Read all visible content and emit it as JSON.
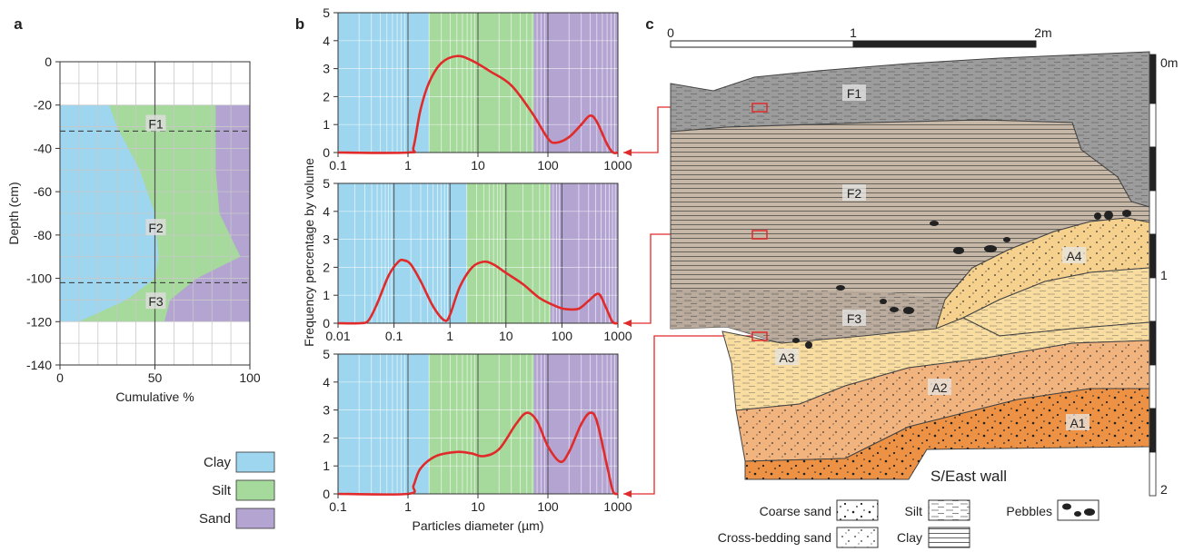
{
  "panels": {
    "a": "a",
    "b": "b",
    "c": "c"
  },
  "colors": {
    "clay": "#9fd6ef",
    "silt": "#a6d99c",
    "sand": "#b3a4d1",
    "curve": "#e12a2a",
    "f_layer": "#9c9c9c",
    "f2_fill": "#c6b7a7",
    "a4_fill": "#f5d18d",
    "a3_fill": "#f8dca0",
    "a2_fill": "#f2b47e",
    "a1_fill": "#ed9245"
  },
  "panel_a": {
    "xlabel": "Cumulative %",
    "ylabel": "Depth (cm)",
    "layer_labels": [
      "F1",
      "F2",
      "F3"
    ]
  },
  "panel_b": {
    "xlabel": "Particles diameter (µm)",
    "ylabel": "Frequency percentage by volume"
  },
  "legend": [
    {
      "label": "Clay",
      "color": "#9fd6ef"
    },
    {
      "label": "Silt",
      "color": "#a6d99c"
    },
    {
      "label": "Sand",
      "color": "#b3a4d1"
    }
  ],
  "panel_c": {
    "scale_labels": [
      "0",
      "1",
      "2m"
    ],
    "depth_labels": [
      "0m",
      "1",
      "2"
    ],
    "unit_labels": [
      "F1",
      "F2",
      "F3",
      "A4",
      "A3",
      "A2",
      "A1"
    ],
    "wall_label": "S/East wall",
    "legend": {
      "coarse": "Coarse sand",
      "cross": "Cross-bedding sand",
      "silt": "Silt",
      "clay": "Clay",
      "pebbles": "Pebbles"
    }
  },
  "chart_data": [
    {
      "type": "area",
      "panel": "a",
      "title": "",
      "xlabel": "Cumulative %",
      "ylabel": "Depth (cm)",
      "xlim": [
        0,
        100
      ],
      "ylim": [
        -140,
        0
      ],
      "xticks": [
        0,
        50,
        100
      ],
      "yticks": [
        0,
        -20,
        -40,
        -60,
        -80,
        -100,
        -120,
        -140
      ],
      "grid": true,
      "depths": [
        -20,
        -30,
        -50,
        -70,
        -90,
        -100,
        -110,
        -120
      ],
      "series": [
        {
          "name": "Clay",
          "cumulative": [
            26,
            30,
            42,
            50,
            52,
            50,
            35,
            10
          ]
        },
        {
          "name": "Silt",
          "cumulative": [
            82,
            82,
            82,
            84,
            95,
            72,
            58,
            55
          ]
        },
        {
          "name": "Sand",
          "cumulative": [
            100,
            100,
            100,
            100,
            100,
            100,
            100,
            100
          ]
        }
      ],
      "boundaries": [
        -32,
        -102
      ]
    },
    {
      "type": "line",
      "panel": "b-F1",
      "xscale": "log",
      "xlim": [
        0.1,
        1000
      ],
      "ylim": [
        0,
        5
      ],
      "xticks": [
        0.1,
        1,
        10,
        100,
        1000
      ],
      "yticks": [
        0,
        1,
        2,
        3,
        4,
        5
      ],
      "x": [
        0.1,
        1,
        1.2,
        1.5,
        2,
        3,
        5,
        8,
        15,
        30,
        60,
        100,
        130,
        200,
        300,
        400,
        500,
        700,
        850,
        1000
      ],
      "y": [
        0,
        0,
        0.2,
        1.5,
        2.5,
        3.2,
        3.45,
        3.3,
        2.9,
        2.4,
        1.4,
        0.5,
        0.35,
        0.55,
        1.0,
        1.32,
        1.1,
        0.3,
        0,
        0
      ]
    },
    {
      "type": "line",
      "panel": "b-F2",
      "xscale": "log",
      "xlim": [
        0.01,
        1000
      ],
      "ylim": [
        0,
        5
      ],
      "xticks": [
        0.01,
        0.1,
        1,
        10,
        100,
        1000
      ],
      "yticks": [
        0,
        1,
        2,
        3,
        4,
        5
      ],
      "x": [
        0.01,
        0.025,
        0.035,
        0.05,
        0.08,
        0.12,
        0.15,
        0.2,
        0.3,
        0.5,
        0.8,
        1,
        1.5,
        2.5,
        4,
        6,
        10,
        20,
        40,
        80,
        120,
        200,
        300,
        450,
        600,
        800,
        1000
      ],
      "y": [
        0,
        0,
        0.1,
        0.7,
        1.7,
        2.2,
        2.25,
        2.1,
        1.5,
        0.6,
        0.1,
        0.3,
        1.3,
        2.0,
        2.2,
        2.1,
        1.8,
        1.4,
        0.9,
        0.6,
        0.5,
        0.52,
        0.8,
        1.05,
        0.6,
        0.05,
        0
      ]
    },
    {
      "type": "line",
      "panel": "b-F3",
      "xscale": "log",
      "xlim": [
        0.1,
        1000
      ],
      "ylim": [
        0,
        5
      ],
      "xticks": [
        0.1,
        1,
        10,
        100,
        1000
      ],
      "yticks": [
        0,
        1,
        2,
        3,
        4,
        5
      ],
      "x": [
        0.1,
        1,
        1.2,
        1.5,
        2.5,
        5,
        8,
        12,
        20,
        35,
        50,
        70,
        100,
        150,
        200,
        300,
        400,
        500,
        700,
        850,
        1000
      ],
      "y": [
        0,
        0,
        0.3,
        0.9,
        1.35,
        1.5,
        1.45,
        1.35,
        1.6,
        2.5,
        2.9,
        2.6,
        1.7,
        1.15,
        1.5,
        2.5,
        2.9,
        2.6,
        1.0,
        0.1,
        0
      ]
    }
  ]
}
